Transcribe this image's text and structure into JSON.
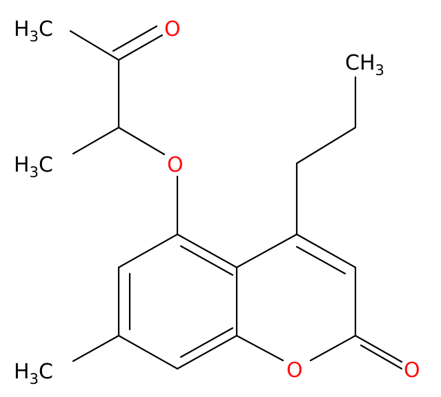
{
  "atoms": [
    {
      "text": [
        "H",
        "3",
        "C"
      ]
    },
    {
      "text": [
        "O"
      ]
    },
    {
      "text": [
        "H",
        "3",
        "C"
      ]
    },
    {
      "text": [
        "O"
      ]
    },
    {
      "text": [
        "CH",
        "3"
      ]
    },
    {
      "text": [
        "H",
        "3",
        "C"
      ]
    },
    {
      "text": [
        "O"
      ]
    },
    {
      "text": [
        "O"
      ]
    }
  ]
}
